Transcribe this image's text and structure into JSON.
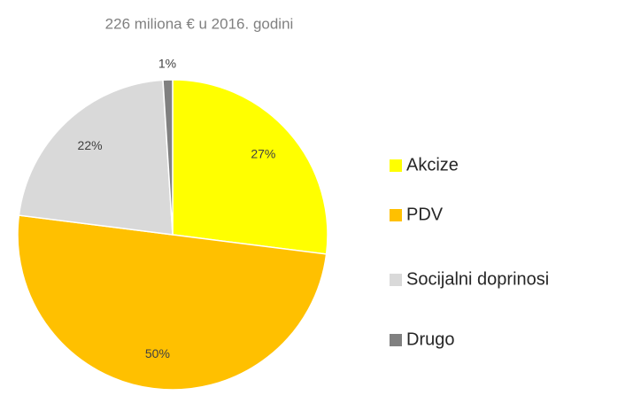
{
  "chart_data": {
    "type": "pie",
    "title": "226 miliona  € u 2016. godini",
    "categories": [
      "Akcize",
      "PDV",
      "Socijalni doprinosi",
      "Drugo"
    ],
    "values": [
      27,
      50,
      22,
      1
    ],
    "value_labels": [
      "27%",
      "50%",
      "22%",
      "1%"
    ],
    "colors": [
      "#ffff00",
      "#ffc000",
      "#d9d9d9",
      "#808080"
    ],
    "legend": "right"
  }
}
